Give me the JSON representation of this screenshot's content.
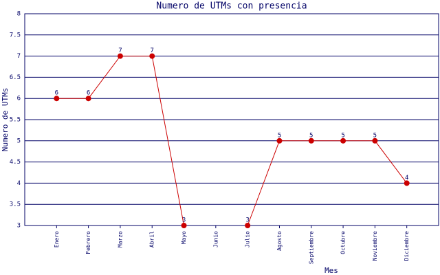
{
  "chart_data": {
    "type": "line",
    "title": "Numero de UTMs con presencia",
    "x_label": "Mes",
    "y_label": "Numero de UTMs",
    "categories": [
      "Enero",
      "Febrero",
      "Marzo",
      "Abril",
      "Mayo",
      "Junio",
      "Julio",
      "Agosto",
      "Septiembre",
      "Octubre",
      "Noviembre",
      "Diciembre"
    ],
    "series": [
      {
        "name": "UTMs",
        "color": "#cc0000",
        "values": [
          6,
          6,
          7,
          7,
          3,
          null,
          3,
          5,
          5,
          5,
          5,
          4
        ]
      }
    ],
    "ylim": [
      3,
      8
    ],
    "yticks": [
      3,
      3.5,
      4,
      4.5,
      5,
      5.5,
      6,
      6.5,
      7,
      7.5,
      8
    ],
    "grid": true
  }
}
